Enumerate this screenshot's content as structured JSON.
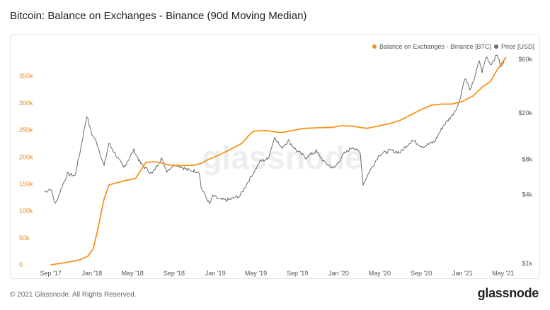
{
  "title": "Bitcoin: Balance on Exchanges - Binance (90d Moving Median)",
  "footer": {
    "copyright": "© 2021 Glassnode. All Rights Reserved.",
    "logo": "glassnode"
  },
  "watermark": "glassnode",
  "colors": {
    "balance": "#f7931a",
    "price": "#6b6b6b",
    "left_axis": "#e8891a",
    "right_axis": "#555555"
  },
  "chart_data": {
    "type": "line",
    "x_type": "date",
    "x_range": [
      "2017-08-14",
      "2021-05-10"
    ],
    "x_ticks": [
      "Sep '17",
      "Jan '18",
      "May '18",
      "Sep '18",
      "Jan '19",
      "May '19",
      "Sep '19",
      "Jan '20",
      "May '20",
      "Sep '20",
      "Jan '21",
      "May '21"
    ],
    "x_tick_dates": [
      "2017-09-01",
      "2018-01-01",
      "2018-05-01",
      "2018-09-01",
      "2019-01-01",
      "2019-05-01",
      "2019-09-01",
      "2020-01-01",
      "2020-05-01",
      "2020-09-01",
      "2021-01-01",
      "2021-05-01"
    ],
    "y_left": {
      "ticks": [
        "0",
        "50k",
        "100k",
        "150k",
        "200k",
        "250k",
        "300k",
        "350k"
      ],
      "tick_values": [
        0,
        50000,
        100000,
        150000,
        200000,
        250000,
        300000,
        350000
      ],
      "range": [
        0,
        385000
      ]
    },
    "y_right": {
      "scale": "log",
      "ticks": [
        "$1k",
        "$4k",
        "$8k",
        "$20k",
        "$60k"
      ],
      "tick_values": [
        1000,
        4000,
        8000,
        20000,
        60000
      ],
      "range": [
        1000,
        60000
      ]
    },
    "legend": {
      "placement": "top-right"
    },
    "series": [
      {
        "name": "Balance on Exchanges - Binance [BTC]",
        "axis": "left",
        "points": [
          [
            "2017-09-01",
            0
          ],
          [
            "2017-10-15",
            4000
          ],
          [
            "2017-11-25",
            9000
          ],
          [
            "2017-12-20",
            16000
          ],
          [
            "2018-01-05",
            30000
          ],
          [
            "2018-01-20",
            70000
          ],
          [
            "2018-02-05",
            120000
          ],
          [
            "2018-02-20",
            148000
          ],
          [
            "2018-03-15",
            152000
          ],
          [
            "2018-04-15",
            157000
          ],
          [
            "2018-05-10",
            160000
          ],
          [
            "2018-05-25",
            175000
          ],
          [
            "2018-06-10",
            190000
          ],
          [
            "2018-07-01",
            191000
          ],
          [
            "2018-07-20",
            190000
          ],
          [
            "2018-08-10",
            186000
          ],
          [
            "2018-09-01",
            184000
          ],
          [
            "2018-10-01",
            184000
          ],
          [
            "2018-11-01",
            185000
          ],
          [
            "2018-11-20",
            188000
          ],
          [
            "2018-12-10",
            195000
          ],
          [
            "2019-01-10",
            203000
          ],
          [
            "2019-02-15",
            214000
          ],
          [
            "2019-03-20",
            225000
          ],
          [
            "2019-04-10",
            240000
          ],
          [
            "2019-04-25",
            248000
          ],
          [
            "2019-06-01",
            249000
          ],
          [
            "2019-07-15",
            245000
          ],
          [
            "2019-08-25",
            250000
          ],
          [
            "2019-09-20",
            253000
          ],
          [
            "2019-11-01",
            254000
          ],
          [
            "2019-12-15",
            255000
          ],
          [
            "2020-01-10",
            258000
          ],
          [
            "2020-02-15",
            257000
          ],
          [
            "2020-03-01",
            255000
          ],
          [
            "2020-03-25",
            253000
          ],
          [
            "2020-05-01",
            258000
          ],
          [
            "2020-06-01",
            262000
          ],
          [
            "2020-07-01",
            268000
          ],
          [
            "2020-08-01",
            278000
          ],
          [
            "2020-09-01",
            288000
          ],
          [
            "2020-10-01",
            296000
          ],
          [
            "2020-11-01",
            298000
          ],
          [
            "2020-12-01",
            298000
          ],
          [
            "2021-01-01",
            303000
          ],
          [
            "2021-02-01",
            313000
          ],
          [
            "2021-03-01",
            330000
          ],
          [
            "2021-03-25",
            340000
          ],
          [
            "2021-04-10",
            358000
          ],
          [
            "2021-04-25",
            372000
          ],
          [
            "2021-05-10",
            385000
          ]
        ]
      },
      {
        "name": "Price [USD]",
        "axis": "right",
        "points": [
          [
            "2017-08-14",
            4200
          ],
          [
            "2017-09-01",
            4500
          ],
          [
            "2017-09-15",
            3300
          ],
          [
            "2017-10-01",
            4400
          ],
          [
            "2017-10-20",
            6000
          ],
          [
            "2017-11-12",
            5800
          ],
          [
            "2017-11-29",
            10000
          ],
          [
            "2017-12-17",
            19000
          ],
          [
            "2017-12-30",
            13500
          ],
          [
            "2018-01-16",
            11000
          ],
          [
            "2018-02-06",
            7000
          ],
          [
            "2018-02-20",
            11000
          ],
          [
            "2018-03-10",
            9000
          ],
          [
            "2018-04-05",
            6800
          ],
          [
            "2018-05-05",
            9600
          ],
          [
            "2018-05-25",
            7400
          ],
          [
            "2018-06-28",
            6000
          ],
          [
            "2018-07-25",
            8200
          ],
          [
            "2018-08-10",
            6400
          ],
          [
            "2018-09-05",
            7300
          ],
          [
            "2018-10-10",
            6500
          ],
          [
            "2018-11-14",
            6300
          ],
          [
            "2018-11-20",
            4600
          ],
          [
            "2018-12-15",
            3300
          ],
          [
            "2018-12-25",
            3900
          ],
          [
            "2019-01-15",
            3600
          ],
          [
            "2019-02-10",
            3600
          ],
          [
            "2019-03-15",
            3900
          ],
          [
            "2019-04-05",
            5000
          ],
          [
            "2019-05-15",
            7800
          ],
          [
            "2019-06-05",
            8000
          ],
          [
            "2019-06-26",
            12500
          ],
          [
            "2019-07-15",
            10000
          ],
          [
            "2019-08-05",
            11600
          ],
          [
            "2019-08-28",
            9600
          ],
          [
            "2019-09-25",
            8300
          ],
          [
            "2019-10-26",
            9400
          ],
          [
            "2019-11-20",
            7500
          ],
          [
            "2019-12-18",
            6700
          ],
          [
            "2020-01-15",
            8800
          ],
          [
            "2020-02-12",
            10300
          ],
          [
            "2020-03-05",
            9000
          ],
          [
            "2020-03-13",
            4900
          ],
          [
            "2020-04-01",
            6300
          ],
          [
            "2020-04-30",
            8800
          ],
          [
            "2020-06-01",
            9500
          ],
          [
            "2020-07-01",
            9200
          ],
          [
            "2020-08-05",
            11700
          ],
          [
            "2020-09-05",
            10300
          ],
          [
            "2020-10-10",
            11300
          ],
          [
            "2020-11-05",
            15500
          ],
          [
            "2020-12-01",
            19000
          ],
          [
            "2020-12-20",
            23500
          ],
          [
            "2021-01-08",
            40000
          ],
          [
            "2021-01-25",
            31000
          ],
          [
            "2021-02-20",
            56000
          ],
          [
            "2021-02-28",
            45000
          ],
          [
            "2021-03-13",
            61000
          ],
          [
            "2021-03-25",
            52000
          ],
          [
            "2021-04-14",
            63500
          ],
          [
            "2021-04-25",
            49000
          ],
          [
            "2021-05-08",
            58000
          ]
        ]
      }
    ]
  }
}
